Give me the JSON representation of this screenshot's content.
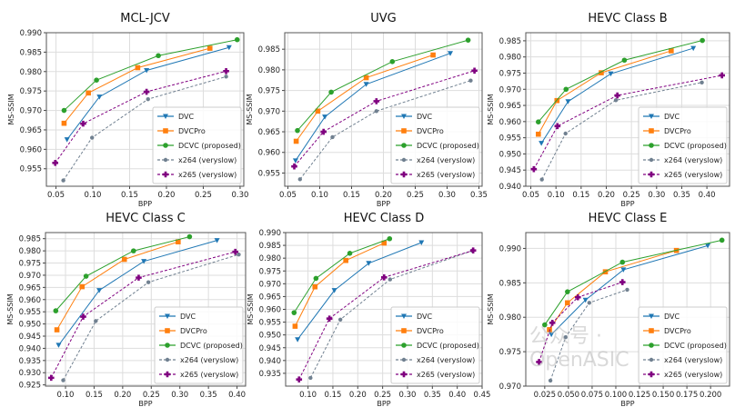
{
  "series_styles": [
    {
      "name": "DVC",
      "color": "#1f77b4",
      "marker": "triangle-down",
      "dash": false
    },
    {
      "name": "DVCPro",
      "color": "#ff7f0e",
      "marker": "square",
      "dash": false
    },
    {
      "name": "DCVC (proposed)",
      "color": "#2ca02c",
      "marker": "circle",
      "dash": false
    },
    {
      "name": "x264 (veryslow)",
      "color": "#708090",
      "marker": "circle-small",
      "dash": true
    },
    {
      "name": "x265 (veryslow)",
      "color": "#800080",
      "marker": "plus-filled",
      "dash": true
    }
  ],
  "watermark": "公众号 · OpenASIC",
  "chart_data": [
    {
      "type": "line",
      "title": "MCL-JCV",
      "xlabel": "BPP",
      "ylabel": "MS-SSIM",
      "xlim": [
        0.037,
        0.305
      ],
      "ylim": [
        0.9505,
        0.99
      ],
      "grid": true,
      "legend": "bottom-right",
      "xtick_labels": [
        "0.05",
        "0.10",
        "0.15",
        "0.20",
        "0.25",
        "0.30"
      ],
      "ytick_labels": [
        "0.955",
        "0.960",
        "0.965",
        "0.970",
        "0.975",
        "0.980",
        "0.985",
        "0.990"
      ],
      "series": [
        {
          "name": "DVC",
          "x": [
            0.065,
            0.109,
            0.173,
            0.285
          ],
          "y": [
            0.9625,
            0.9735,
            0.9803,
            0.9862
          ]
        },
        {
          "name": "DVCPro",
          "x": [
            0.061,
            0.094,
            0.161,
            0.259
          ],
          "y": [
            0.9667,
            0.9745,
            0.981,
            0.986
          ]
        },
        {
          "name": "DCVC (proposed)",
          "x": [
            0.061,
            0.105,
            0.189,
            0.296
          ],
          "y": [
            0.97,
            0.9778,
            0.9841,
            0.9882
          ]
        },
        {
          "name": "x264 (veryslow)",
          "x": [
            0.06,
            0.099,
            0.175,
            0.281
          ],
          "y": [
            0.952,
            0.963,
            0.9729,
            0.9787
          ]
        },
        {
          "name": "x265 (veryslow)",
          "x": [
            0.049,
            0.087,
            0.173,
            0.281
          ],
          "y": [
            0.9565,
            0.9666,
            0.9748,
            0.9801
          ]
        }
      ]
    },
    {
      "type": "line",
      "title": "UVG",
      "xlabel": "BPP",
      "ylabel": "MS-SSIM",
      "xlim": [
        0.045,
        0.355
      ],
      "ylim": [
        0.9518,
        0.989
      ],
      "grid": true,
      "legend": "bottom-right",
      "xtick_labels": [
        "0.05",
        "0.10",
        "0.15",
        "0.20",
        "0.25",
        "0.30",
        "0.35"
      ],
      "ytick_labels": [
        "0.955",
        "0.960",
        "0.965",
        "0.970",
        "0.975",
        "0.980",
        "0.985"
      ],
      "series": [
        {
          "name": "DVC",
          "x": [
            0.062,
            0.108,
            0.173,
            0.305
          ],
          "y": [
            0.958,
            0.9686,
            0.9765,
            0.984
          ]
        },
        {
          "name": "DVCPro",
          "x": [
            0.063,
            0.097,
            0.173,
            0.278
          ],
          "y": [
            0.9627,
            0.97,
            0.9781,
            0.9836
          ]
        },
        {
          "name": "DCVC (proposed)",
          "x": [
            0.065,
            0.118,
            0.214,
            0.333
          ],
          "y": [
            0.9653,
            0.9746,
            0.982,
            0.9872
          ]
        },
        {
          "name": "x264 (veryslow)",
          "x": [
            0.069,
            0.12,
            0.189,
            0.337
          ],
          "y": [
            0.9535,
            0.9637,
            0.97,
            0.9774
          ]
        },
        {
          "name": "x265 (veryslow)",
          "x": [
            0.06,
            0.106,
            0.189,
            0.343
          ],
          "y": [
            0.9566,
            0.965,
            0.9724,
            0.9798
          ]
        }
      ]
    },
    {
      "type": "line",
      "title": "HEVC Class B",
      "xlabel": "BPP",
      "ylabel": "MS-SSIM",
      "xlim": [
        0.04,
        0.445
      ],
      "ylim": [
        0.94,
        0.9875
      ],
      "grid": true,
      "legend": "bottom-right",
      "xtick_labels": [
        "0.05",
        "0.10",
        "0.15",
        "0.20",
        "0.25",
        "0.30",
        "0.35",
        "0.40"
      ],
      "ytick_labels": [
        "0.940",
        "0.945",
        "0.950",
        "0.955",
        "0.960",
        "0.965",
        "0.970",
        "0.975",
        "0.980",
        "0.985"
      ],
      "series": [
        {
          "name": "DVC",
          "x": [
            0.071,
            0.124,
            0.209,
            0.373
          ],
          "y": [
            0.9533,
            0.9662,
            0.9748,
            0.9827
          ]
        },
        {
          "name": "DVCPro",
          "x": [
            0.065,
            0.102,
            0.19,
            0.329
          ],
          "y": [
            0.9561,
            0.9665,
            0.9751,
            0.9819
          ]
        },
        {
          "name": "DCVC (proposed)",
          "x": [
            0.065,
            0.12,
            0.236,
            0.391
          ],
          "y": [
            0.9599,
            0.97,
            0.979,
            0.9851
          ]
        },
        {
          "name": "x264 (veryslow)",
          "x": [
            0.072,
            0.119,
            0.219,
            0.39
          ],
          "y": [
            0.9421,
            0.9563,
            0.9666,
            0.9721
          ]
        },
        {
          "name": "x265 (veryslow)",
          "x": [
            0.056,
            0.103,
            0.222,
            0.43
          ],
          "y": [
            0.9453,
            0.9586,
            0.9681,
            0.9743
          ]
        }
      ]
    },
    {
      "type": "line",
      "title": "HEVC Class C",
      "xlabel": "BPP",
      "ylabel": "MS-SSIM",
      "xlim": [
        0.065,
        0.415
      ],
      "ylim": [
        0.9245,
        0.9875
      ],
      "grid": true,
      "legend": "bottom-right",
      "xtick_labels": [
        "0.10",
        "0.15",
        "0.20",
        "0.25",
        "0.30",
        "0.35",
        "0.40"
      ],
      "ytick_labels": [
        "0.925",
        "0.930",
        "0.935",
        "0.940",
        "0.945",
        "0.950",
        "0.955",
        "0.960",
        "0.965",
        "0.970",
        "0.975",
        "0.980",
        "0.985"
      ],
      "series": [
        {
          "name": "DVC",
          "x": [
            0.088,
            0.159,
            0.237,
            0.365
          ],
          "y": [
            0.9413,
            0.9638,
            0.9757,
            0.9843
          ]
        },
        {
          "name": "DVCPro",
          "x": [
            0.085,
            0.129,
            0.203,
            0.297
          ],
          "y": [
            0.9476,
            0.9653,
            0.9765,
            0.9837
          ]
        },
        {
          "name": "DCVC (proposed)",
          "x": [
            0.083,
            0.136,
            0.219,
            0.317
          ],
          "y": [
            0.9554,
            0.9696,
            0.98,
            0.9858
          ]
        },
        {
          "name": "x264 (veryslow)",
          "x": [
            0.096,
            0.153,
            0.245,
            0.403
          ],
          "y": [
            0.9269,
            0.9512,
            0.9671,
            0.9785
          ]
        },
        {
          "name": "x265 (veryslow)",
          "x": [
            0.075,
            0.131,
            0.228,
            0.397
          ],
          "y": [
            0.9279,
            0.953,
            0.969,
            0.9796
          ]
        }
      ]
    },
    {
      "type": "line",
      "title": "HEVC Class D",
      "xlabel": "BPP",
      "ylabel": "MS-SSIM",
      "xlim": [
        0.055,
        0.45
      ],
      "ylim": [
        0.93,
        0.99
      ],
      "grid": true,
      "legend": "bottom-right",
      "xtick_labels": [
        "0.10",
        "0.15",
        "0.20",
        "0.25",
        "0.30",
        "0.35",
        "0.40",
        "0.45"
      ],
      "ytick_labels": [
        "0.935",
        "0.940",
        "0.945",
        "0.950",
        "0.955",
        "0.960",
        "0.965",
        "0.970",
        "0.975",
        "0.980",
        "0.985",
        "0.990"
      ],
      "series": [
        {
          "name": "DVC",
          "x": [
            0.079,
            0.153,
            0.222,
            0.328
          ],
          "y": [
            0.9482,
            0.9674,
            0.978,
            0.9861
          ]
        },
        {
          "name": "DVCPro",
          "x": [
            0.074,
            0.114,
            0.176,
            0.253
          ],
          "y": [
            0.9534,
            0.9688,
            0.9791,
            0.9859
          ]
        },
        {
          "name": "DCVC (proposed)",
          "x": [
            0.072,
            0.116,
            0.184,
            0.264
          ],
          "y": [
            0.9587,
            0.9721,
            0.9819,
            0.9876
          ]
        },
        {
          "name": "x264 (veryslow)",
          "x": [
            0.105,
            0.165,
            0.265,
            0.43
          ],
          "y": [
            0.9332,
            0.956,
            0.9717,
            0.9829
          ]
        },
        {
          "name": "x265 (veryslow)",
          "x": [
            0.082,
            0.143,
            0.253,
            0.432
          ],
          "y": [
            0.9326,
            0.9564,
            0.9725,
            0.983
          ]
        }
      ]
    },
    {
      "type": "line",
      "title": "HEVC Class E",
      "xlabel": "BPP",
      "ylabel": "MS-SSIM",
      "xlim": [
        0.005,
        0.22
      ],
      "ylim": [
        0.97,
        0.9923
      ],
      "grid": true,
      "legend": "bottom-right",
      "xtick_labels": [
        "0.025",
        "0.050",
        "0.075",
        "0.100",
        "0.125",
        "0.150",
        "0.175",
        "0.200"
      ],
      "ytick_labels": [
        "0.970",
        "0.975",
        "0.980",
        "0.985",
        "0.990"
      ],
      "series": [
        {
          "name": "DVC",
          "x": [
            0.032,
            0.068,
            0.108,
            0.197
          ],
          "y": [
            0.9775,
            0.9825,
            0.9869,
            0.9904
          ]
        },
        {
          "name": "DVCPro",
          "x": [
            0.03,
            0.049,
            0.089,
            0.164
          ],
          "y": [
            0.9782,
            0.9821,
            0.9866,
            0.9897
          ]
        },
        {
          "name": "DCVC (proposed)",
          "x": [
            0.025,
            0.049,
            0.107,
            0.212
          ],
          "y": [
            0.9789,
            0.9837,
            0.988,
            0.9912
          ]
        },
        {
          "name": "x264 (veryslow)",
          "x": [
            0.031,
            0.047,
            0.072,
            0.112
          ],
          "y": [
            0.9708,
            0.9771,
            0.9821,
            0.984
          ]
        },
        {
          "name": "x265 (veryslow)",
          "x": [
            0.019,
            0.033,
            0.06,
            0.107
          ],
          "y": [
            0.9735,
            0.9792,
            0.9829,
            0.9851
          ]
        }
      ]
    }
  ]
}
